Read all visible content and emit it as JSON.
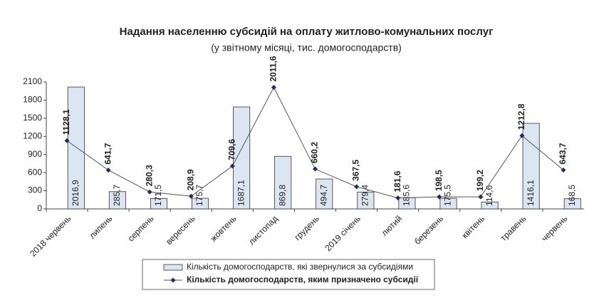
{
  "chart_data": {
    "type": "bar_line",
    "title": "Надання населенню субсидій на оплату житлово-комунальних послуг",
    "subtitle": "(у звітному місяці, тис. домогосподарств)",
    "categories": [
      "2018 червень",
      "липень",
      "серпень",
      "вересень",
      "жовтень",
      "листопад",
      "грудень",
      "2019 січень",
      "лютий",
      "березень",
      "квітень",
      "травень",
      "червень"
    ],
    "series": [
      {
        "name": "Кількість домогосподарств, які звернулися за субсидіями",
        "type": "bar",
        "color": "#dce6f2",
        "values": [
          2016.9,
          285.7,
          171.5,
          175.7,
          1687.1,
          869.8,
          494.7,
          279.4,
          185.6,
          175.5,
          114.6,
          1416.1,
          168.5
        ],
        "value_labels": [
          "2016,9",
          "285,7",
          "171,5",
          "175,7",
          "1687,1",
          "869,8",
          "494,7",
          "279,4",
          "185,6",
          "175,5",
          "114,6",
          "1416,1",
          "168,5"
        ]
      },
      {
        "name": "Кількість домогосподарств, яким  призначено субсидії",
        "type": "line",
        "color": "#1f2d5a",
        "values": [
          1128.1,
          641.7,
          280.3,
          208.9,
          709.6,
          2011.6,
          660.2,
          367.5,
          181.6,
          198.5,
          199.2,
          1212.8,
          643.7
        ],
        "value_labels": [
          "1128,1",
          "641,7",
          "280,3",
          "208,9",
          "709,6",
          "2011,6",
          "660,2",
          "367,5",
          "181,6",
          "198,5",
          "199,2",
          "1212,8",
          "643,7"
        ]
      }
    ],
    "ylim": [
      0,
      2100
    ],
    "yticks": [
      0,
      300,
      600,
      900,
      1200,
      1500,
      1800,
      2100
    ],
    "grid": false
  }
}
